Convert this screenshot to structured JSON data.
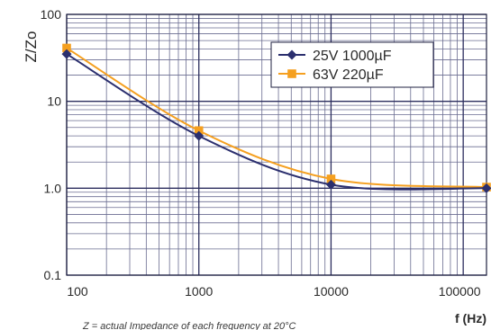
{
  "chart_data": {
    "type": "line",
    "xscale": "log",
    "yscale": "log",
    "xlim": [
      100,
      150000
    ],
    "ylim": [
      0.1,
      100
    ],
    "xlabel": "f (Hz)",
    "ylabel": "Z/Zo",
    "x_ticks": [
      {
        "value": 100,
        "label": "100"
      },
      {
        "value": 1000,
        "label": "1000"
      },
      {
        "value": 10000,
        "label": "10000"
      },
      {
        "value": 100000,
        "label": "100000"
      }
    ],
    "y_ticks": [
      {
        "value": 100,
        "label": "100"
      },
      {
        "value": 10,
        "label": "10"
      },
      {
        "value": 1,
        "label": "1.0"
      },
      {
        "value": 0.1,
        "label": "0.1"
      }
    ],
    "grid": true,
    "legend_position": "top-right",
    "footnote": "Z = actual Impedance of each frequency at 20°C",
    "series": [
      {
        "name": "25V 1000µF",
        "color": "#2b2f6e",
        "marker": "diamond",
        "x": [
          100,
          1000,
          10000,
          150000
        ],
        "y": [
          35,
          4.0,
          1.1,
          1.0
        ]
      },
      {
        "name": "63V 220µF",
        "color": "#f5a020",
        "marker": "square",
        "x": [
          100,
          1000,
          10000,
          150000
        ],
        "y": [
          41,
          4.6,
          1.28,
          1.03
        ]
      }
    ]
  }
}
